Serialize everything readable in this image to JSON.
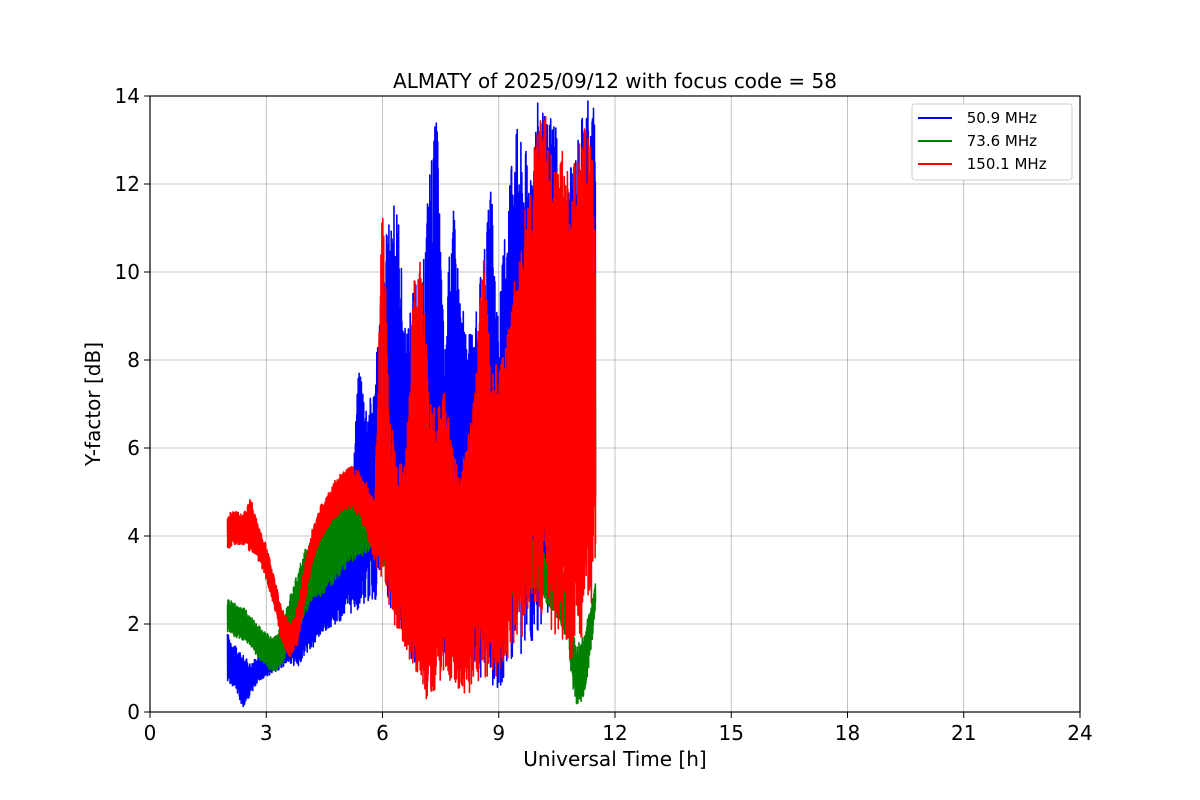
{
  "chart_data": {
    "type": "line",
    "title": "ALMATY of 2025/09/12 with focus code = 58",
    "xlabel": "Universal Time [h]",
    "ylabel": "Y-factor [dB]",
    "xlim": [
      0,
      24
    ],
    "ylim": [
      0,
      14
    ],
    "xticks": [
      0,
      3,
      6,
      9,
      12,
      15,
      18,
      21,
      24
    ],
    "yticks": [
      0,
      2,
      4,
      6,
      8,
      10,
      12,
      14
    ],
    "grid": true,
    "legend_position": "top-right",
    "series": [
      {
        "name": " 50.9 MHz",
        "color": "#0000ff",
        "x": [
          2.0,
          2.2,
          2.4,
          2.6,
          2.8,
          3.0,
          3.2,
          3.4,
          3.6,
          3.8,
          4.0,
          4.2,
          4.4,
          4.6,
          4.8,
          5.0,
          5.2,
          5.4,
          5.6,
          5.8,
          6.0,
          6.2,
          6.4,
          6.6,
          6.8,
          7.0,
          7.2,
          7.4,
          7.6,
          7.8,
          8.0,
          8.2,
          8.4,
          8.6,
          8.8,
          9.0,
          9.2,
          9.4,
          9.6,
          9.8,
          10.0,
          10.2,
          10.4,
          10.6,
          10.8,
          11.0,
          11.2,
          11.4,
          11.5
        ],
        "low": [
          0.7,
          0.5,
          0.1,
          0.4,
          0.7,
          0.8,
          0.9,
          1.0,
          1.1,
          1.0,
          1.3,
          1.4,
          1.7,
          1.9,
          2.0,
          2.1,
          2.2,
          2.3,
          2.5,
          2.4,
          3.0,
          2.4,
          2.0,
          1.6,
          1.0,
          1.5,
          1.0,
          1.2,
          1.0,
          1.5,
          0.9,
          1.0,
          0.7,
          0.8,
          0.5,
          0.5,
          0.8,
          1.2,
          1.0,
          1.5,
          1.8,
          2.0,
          2.2,
          2.5,
          3.0,
          3.2,
          3.5,
          3.8,
          4.0
        ],
        "high": [
          1.8,
          1.5,
          1.3,
          1.1,
          1.3,
          1.5,
          1.6,
          1.9,
          2.1,
          2.3,
          2.6,
          2.9,
          3.2,
          3.4,
          3.6,
          4.5,
          5.0,
          8.1,
          7.0,
          7.5,
          10.2,
          11.5,
          11.6,
          8.5,
          10.0,
          9.3,
          12.5,
          13.7,
          8.2,
          11.9,
          9.8,
          8.5,
          9.0,
          10.4,
          12.0,
          9.0,
          11.8,
          13.7,
          13.0,
          12.8,
          14.0,
          13.5,
          14.0,
          12.0,
          12.2,
          13.0,
          14.0,
          14.0,
          14.0
        ]
      },
      {
        "name": " 73.6 MHz",
        "color": "#008000",
        "x": [
          2.0,
          2.2,
          2.4,
          2.6,
          2.8,
          3.0,
          3.2,
          3.4,
          3.6,
          3.8,
          4.0,
          4.2,
          4.4,
          4.6,
          4.8,
          5.0,
          5.2,
          5.4,
          5.6,
          5.8,
          6.0,
          6.2,
          6.4,
          6.6,
          6.8,
          7.0,
          7.2,
          7.4,
          7.6,
          7.8,
          8.0,
          8.2,
          8.4,
          8.6,
          8.8,
          9.0,
          9.2,
          9.4,
          9.6,
          9.8,
          10.0,
          10.2,
          10.4,
          10.6,
          10.8,
          10.9,
          11.0,
          11.2,
          11.4,
          11.5
        ],
        "low": [
          1.8,
          1.7,
          1.6,
          1.5,
          1.2,
          1.0,
          0.9,
          1.0,
          1.4,
          1.8,
          2.2,
          2.5,
          2.6,
          2.8,
          3.0,
          3.2,
          3.4,
          3.5,
          3.6,
          3.7,
          3.3,
          3.0,
          2.6,
          2.6,
          2.8,
          2.6,
          2.5,
          2.7,
          2.8,
          2.6,
          2.5,
          2.6,
          2.5,
          2.4,
          2.2,
          2.4,
          2.5,
          2.6,
          2.8,
          2.9,
          2.7,
          2.5,
          2.3,
          2.0,
          1.5,
          0.6,
          0.1,
          0.3,
          1.5,
          2.4
        ],
        "high": [
          2.6,
          2.5,
          2.4,
          2.2,
          2.0,
          1.8,
          1.7,
          2.0,
          2.6,
          3.2,
          3.7,
          3.9,
          4.1,
          4.3,
          4.6,
          4.9,
          5.1,
          5.0,
          4.9,
          4.8,
          4.6,
          4.3,
          4.0,
          3.9,
          3.9,
          3.8,
          3.7,
          4.0,
          4.2,
          3.9,
          3.7,
          3.8,
          3.7,
          3.5,
          3.5,
          3.6,
          3.8,
          4.0,
          4.2,
          4.0,
          3.8,
          3.6,
          3.5,
          3.3,
          3.0,
          2.0,
          1.5,
          1.8,
          2.5,
          3.0
        ]
      },
      {
        "name": " 150.1 MHz",
        "color": "#ff0000",
        "x": [
          2.0,
          2.2,
          2.4,
          2.6,
          2.8,
          3.0,
          3.2,
          3.4,
          3.6,
          3.8,
          4.0,
          4.2,
          4.4,
          4.6,
          4.8,
          5.0,
          5.2,
          5.4,
          5.6,
          5.8,
          6.0,
          6.2,
          6.4,
          6.6,
          6.8,
          7.0,
          7.2,
          7.4,
          7.6,
          7.8,
          8.0,
          8.2,
          8.4,
          8.6,
          8.8,
          9.0,
          9.2,
          9.4,
          9.6,
          9.8,
          10.0,
          10.2,
          10.4,
          10.6,
          10.8,
          11.0,
          11.2,
          11.4,
          11.5
        ],
        "low": [
          3.7,
          3.8,
          3.8,
          3.6,
          3.4,
          3.0,
          2.4,
          1.6,
          1.2,
          1.5,
          2.5,
          3.4,
          3.9,
          4.2,
          4.4,
          4.6,
          4.6,
          4.4,
          4.0,
          3.4,
          2.8,
          2.2,
          1.8,
          1.4,
          1.0,
          0.4,
          0.1,
          0.5,
          0.8,
          0.6,
          0.5,
          0.3,
          0.6,
          0.8,
          0.6,
          0.9,
          1.2,
          1.4,
          1.6,
          2.0,
          2.4,
          2.0,
          1.8,
          1.4,
          1.0,
          1.5,
          1.8,
          2.5,
          3.0
        ],
        "high": [
          4.5,
          4.6,
          4.5,
          4.9,
          4.2,
          3.8,
          3.1,
          2.4,
          2.0,
          2.4,
          3.4,
          4.2,
          4.7,
          5.0,
          5.3,
          5.5,
          5.6,
          5.5,
          5.2,
          4.8,
          11.8,
          6.8,
          5.6,
          6.0,
          9.8,
          10.3,
          7.5,
          6.8,
          7.4,
          6.0,
          5.5,
          6.2,
          7.8,
          10.4,
          8.2,
          7.8,
          8.6,
          9.8,
          11.2,
          12.0,
          13.7,
          14.0,
          12.5,
          12.8,
          13.0,
          12.5,
          13.5,
          12.8,
          11.5
        ]
      }
    ]
  }
}
